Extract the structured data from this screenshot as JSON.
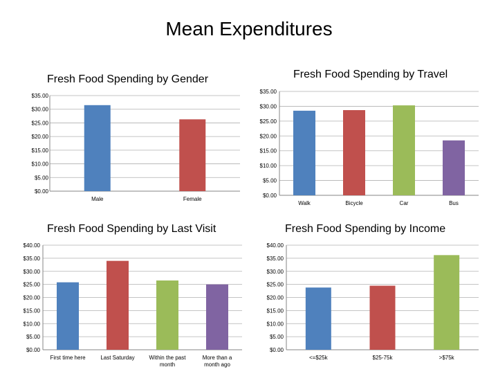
{
  "title": "Mean Expenditures",
  "chart_data": [
    {
      "type": "bar",
      "title": "Fresh Food Spending by Gender",
      "categories": [
        "Male",
        "Female"
      ],
      "values": [
        31.5,
        26.3
      ],
      "ylim": [
        0,
        35
      ],
      "yticks": [
        "$0.00",
        "$5.00",
        "$10.00",
        "$15.00",
        "$20.00",
        "$25.00",
        "$30.00",
        "$35.00"
      ],
      "colors": [
        "#4f81bd",
        "#c0504d"
      ],
      "grid": true
    },
    {
      "type": "bar",
      "title": "Fresh Food Spending by Travel",
      "categories": [
        "Walk",
        "Bicycle",
        "Car",
        "Bus"
      ],
      "values": [
        28.5,
        28.7,
        30.3,
        18.5
      ],
      "ylim": [
        0,
        35
      ],
      "yticks": [
        "$0.00",
        "$5.00",
        "$10.00",
        "$15.00",
        "$20.00",
        "$25.00",
        "$30.00",
        "$35.00"
      ],
      "colors": [
        "#4f81bd",
        "#c0504d",
        "#9bbb59",
        "#8064a2"
      ],
      "grid": true
    },
    {
      "type": "bar",
      "title": "Fresh Food Spending by Last Visit",
      "categories": [
        "First time here",
        "Last Saturday",
        "Within the past month",
        "More than a month ago"
      ],
      "values": [
        25.8,
        34,
        26.5,
        25
      ],
      "ylim": [
        0,
        40
      ],
      "yticks": [
        "$0.00",
        "$5.00",
        "$10.00",
        "$15.00",
        "$20.00",
        "$25.00",
        "$30.00",
        "$35.00",
        "$40.00"
      ],
      "colors": [
        "#4f81bd",
        "#c0504d",
        "#9bbb59",
        "#8064a2"
      ],
      "grid": true
    },
    {
      "type": "bar",
      "title": "Fresh Food Spending by Income",
      "categories": [
        "<=$25k",
        "$25-75k",
        ">$75k"
      ],
      "values": [
        23.8,
        24.5,
        36.2
      ],
      "ylim": [
        0,
        40
      ],
      "yticks": [
        "$0.00",
        "$5.00",
        "$10.00",
        "$15.00",
        "$20.00",
        "$25.00",
        "$30.00",
        "$35.00",
        "$40.00"
      ],
      "colors": [
        "#4f81bd",
        "#c0504d",
        "#9bbb59"
      ],
      "grid": true
    }
  ]
}
